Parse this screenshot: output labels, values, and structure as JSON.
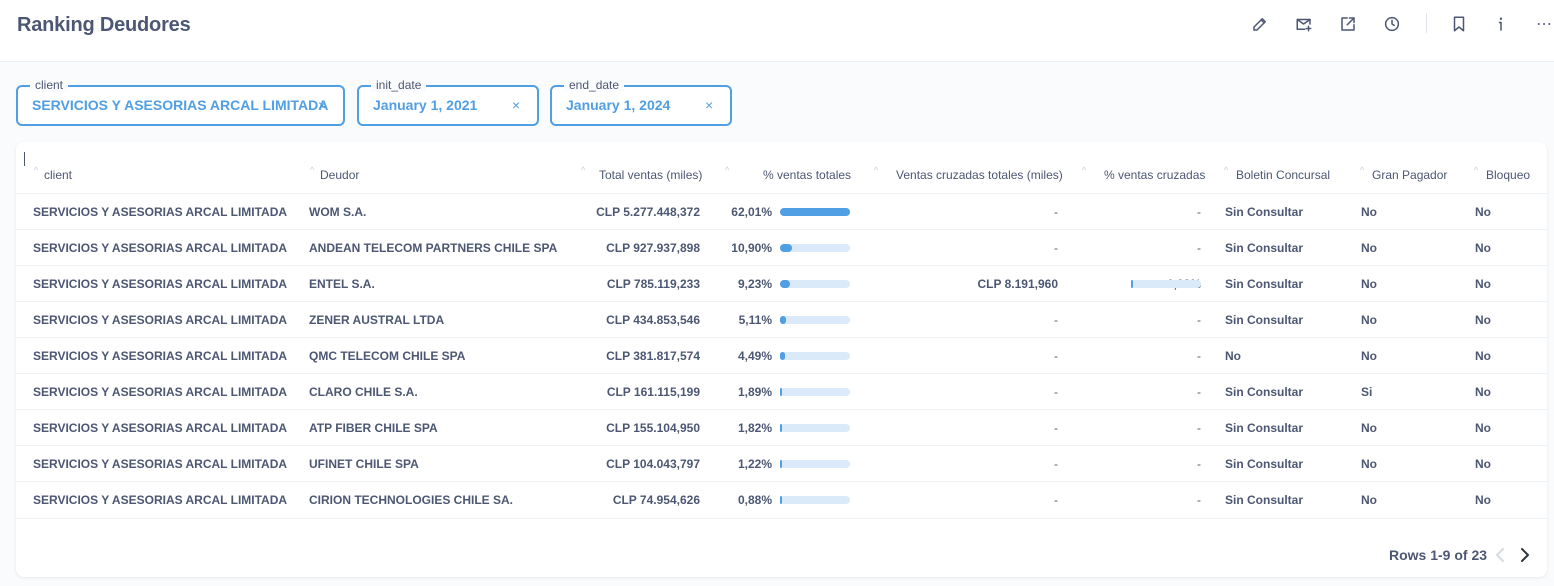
{
  "header": {
    "title": "Ranking Deudores",
    "icons": [
      "pencil-icon",
      "mail-add-icon",
      "share-icon",
      "clock-icon",
      "bookmark-icon",
      "info-icon",
      "more-icon"
    ]
  },
  "filters": [
    {
      "label": "client",
      "value": "SERVICIOS Y ASESORIAS ARCAL LIMITADA",
      "clear": "×"
    },
    {
      "label": "init_date",
      "value": "January 1, 2021",
      "clear": "×"
    },
    {
      "label": "end_date",
      "value": "January 1, 2024",
      "clear": "×"
    }
  ],
  "table": {
    "columns": [
      "client",
      "Deudor",
      "Total ventas (miles)",
      "% ventas totales",
      "Ventas cruzadas totales (miles)",
      "% ventas cruzadas",
      "Boletin Concursal",
      "Gran Pagador",
      "Bloqueo"
    ],
    "rows": [
      {
        "client": "SERVICIOS Y ASESORIAS ARCAL LIMITADA",
        "deudor": "WOM S.A.",
        "total": "CLP 5.277.448,372",
        "pct": "62,01%",
        "pct_value": 62.01,
        "cruzadas": "-",
        "pct_cruz": "-",
        "pct_cruz_value": null,
        "boletin": "Sin Consultar",
        "gran": "No",
        "bloqueo": "No"
      },
      {
        "client": "SERVICIOS Y ASESORIAS ARCAL LIMITADA",
        "deudor": "ANDEAN TELECOM PARTNERS CHILE SPA",
        "total": "CLP 927.937,898",
        "pct": "10,90%",
        "pct_value": 10.9,
        "cruzadas": "-",
        "pct_cruz": "-",
        "pct_cruz_value": null,
        "boletin": "Sin Consultar",
        "gran": "No",
        "bloqueo": "No"
      },
      {
        "client": "SERVICIOS Y ASESORIAS ARCAL LIMITADA",
        "deudor": "ENTEL S.A.",
        "total": "CLP 785.119,233",
        "pct": "9,23%",
        "pct_value": 9.23,
        "cruzadas": "CLP 8.191,960",
        "pct_cruz": "1,03%",
        "pct_cruz_value": 1.03,
        "boletin": "Sin Consultar",
        "gran": "No",
        "bloqueo": "No"
      },
      {
        "client": "SERVICIOS Y ASESORIAS ARCAL LIMITADA",
        "deudor": "ZENER AUSTRAL LTDA",
        "total": "CLP 434.853,546",
        "pct": "5,11%",
        "pct_value": 5.11,
        "cruzadas": "-",
        "pct_cruz": "-",
        "pct_cruz_value": null,
        "boletin": "Sin Consultar",
        "gran": "No",
        "bloqueo": "No"
      },
      {
        "client": "SERVICIOS Y ASESORIAS ARCAL LIMITADA",
        "deudor": "QMC TELECOM CHILE SPA",
        "total": "CLP 381.817,574",
        "pct": "4,49%",
        "pct_value": 4.49,
        "cruzadas": "-",
        "pct_cruz": "-",
        "pct_cruz_value": null,
        "boletin": "No",
        "gran": "No",
        "bloqueo": "No"
      },
      {
        "client": "SERVICIOS Y ASESORIAS ARCAL LIMITADA",
        "deudor": "CLARO CHILE S.A.",
        "total": "CLP 161.115,199",
        "pct": "1,89%",
        "pct_value": 1.89,
        "cruzadas": "-",
        "pct_cruz": "-",
        "pct_cruz_value": null,
        "boletin": "Sin Consultar",
        "gran": "Si",
        "bloqueo": "No"
      },
      {
        "client": "SERVICIOS Y ASESORIAS ARCAL LIMITADA",
        "deudor": "ATP FIBER CHILE SPA",
        "total": "CLP 155.104,950",
        "pct": "1,82%",
        "pct_value": 1.82,
        "cruzadas": "-",
        "pct_cruz": "-",
        "pct_cruz_value": null,
        "boletin": "Sin Consultar",
        "gran": "No",
        "bloqueo": "No"
      },
      {
        "client": "SERVICIOS Y ASESORIAS ARCAL LIMITADA",
        "deudor": "UFINET CHILE SPA",
        "total": "CLP 104.043,797",
        "pct": "1,22%",
        "pct_value": 1.22,
        "cruzadas": "-",
        "pct_cruz": "-",
        "pct_cruz_value": null,
        "boletin": "Sin Consultar",
        "gran": "No",
        "bloqueo": "No"
      },
      {
        "client": "SERVICIOS Y ASESORIAS ARCAL LIMITADA",
        "deudor": "CIRION TECHNOLOGIES CHILE SA.",
        "total": "CLP 74.954,626",
        "pct": "0,88%",
        "pct_value": 0.88,
        "cruzadas": "-",
        "pct_cruz": "-",
        "pct_cruz_value": null,
        "boletin": "Sin Consultar",
        "gran": "No",
        "bloqueo": "No"
      }
    ]
  },
  "pagination": {
    "text": "Rows 1-9 of 23"
  },
  "colors": {
    "accent": "#509ee3",
    "text": "#4c5773",
    "bar_bg": "#dbeaf8"
  }
}
